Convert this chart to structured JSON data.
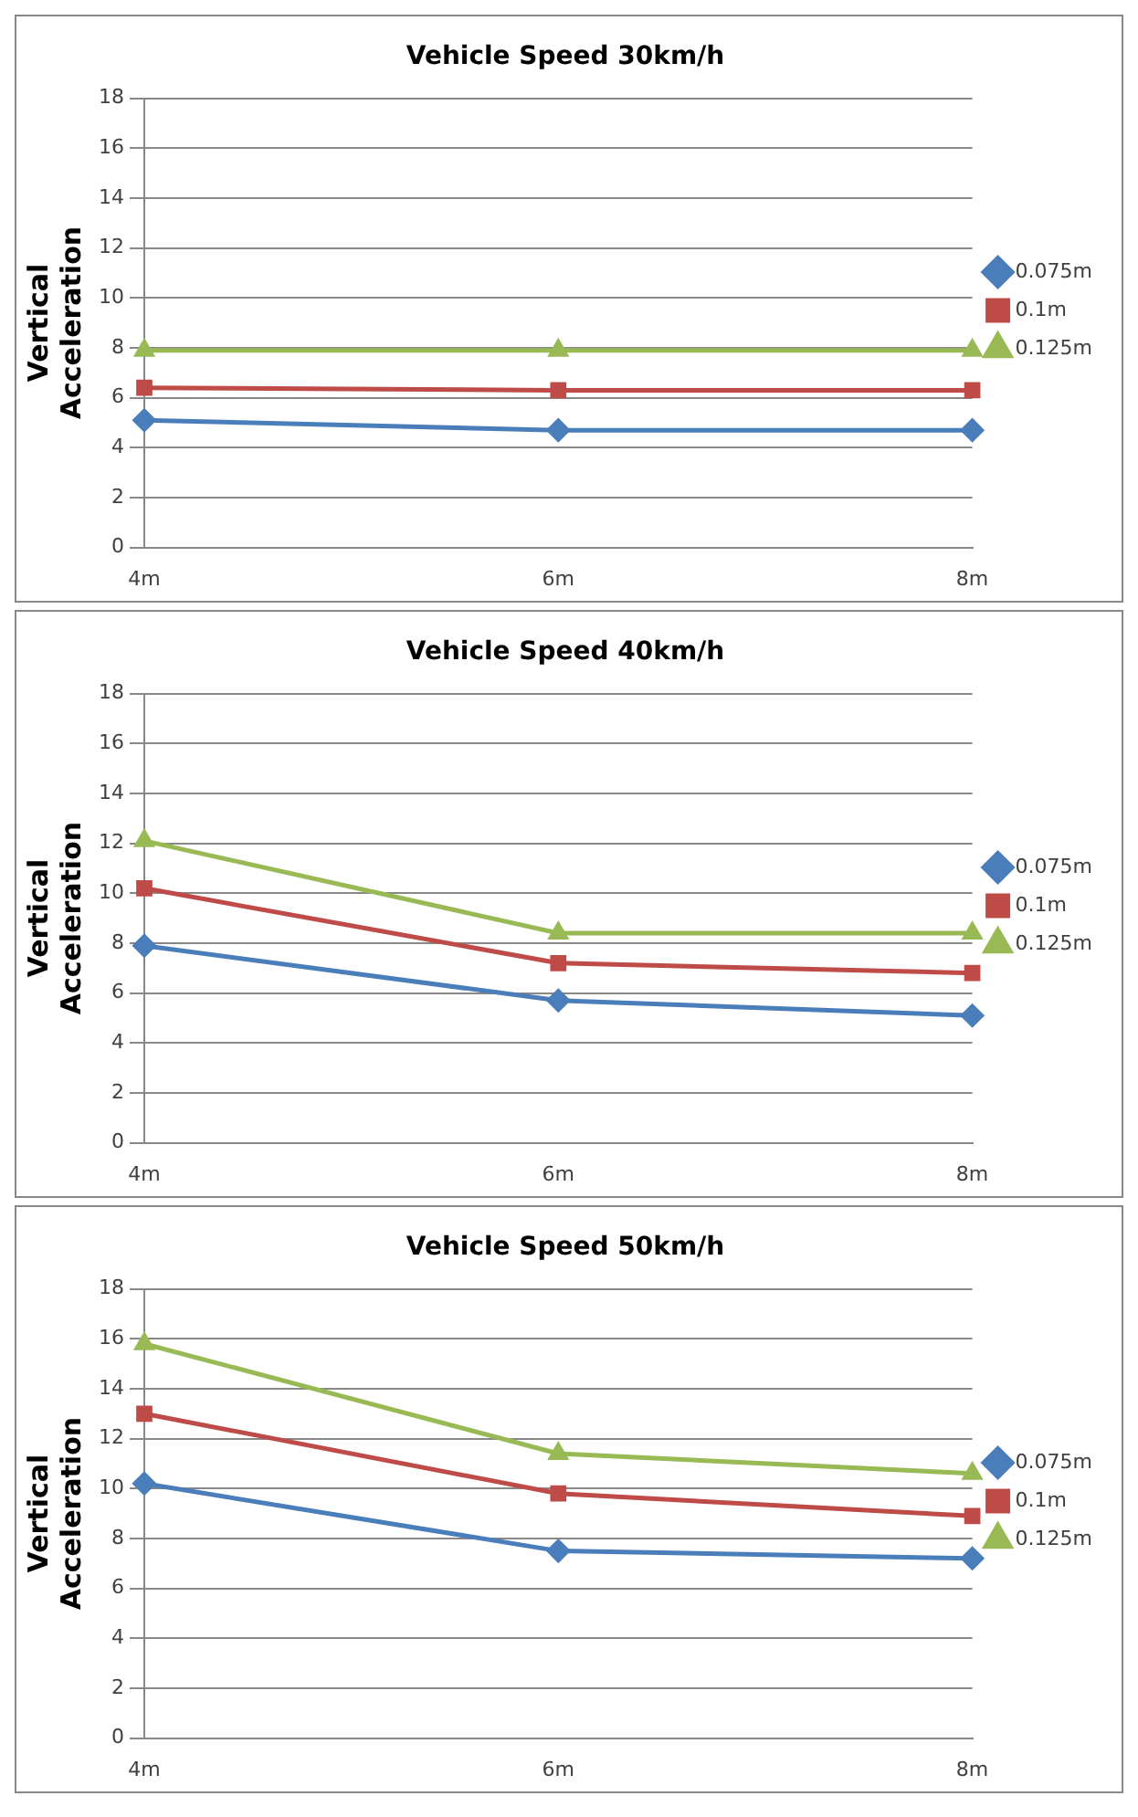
{
  "chart_data": [
    {
      "type": "line",
      "title": "Vehicle Speed 30km/h",
      "ylabel": "Vertical Acceleration",
      "categories": [
        "4m",
        "6m",
        "8m"
      ],
      "series": [
        {
          "name": "0.075m",
          "color": "#4a7ebb",
          "marker": "diamond",
          "values": [
            5.1,
            4.7,
            4.7
          ]
        },
        {
          "name": "0.1m",
          "color": "#be4b48",
          "marker": "square",
          "values": [
            6.4,
            6.3,
            6.3
          ]
        },
        {
          "name": "0.125m",
          "color": "#98b954",
          "marker": "triangle",
          "values": [
            7.9,
            7.9,
            7.9
          ]
        }
      ],
      "ylim": [
        0,
        18
      ],
      "yticks": [
        0,
        2,
        4,
        6,
        8,
        10,
        12,
        14,
        16,
        18
      ],
      "grid": "y",
      "legend": "right"
    },
    {
      "type": "line",
      "title": "Vehicle Speed 40km/h",
      "ylabel": "Vertical Acceleration",
      "categories": [
        "4m",
        "6m",
        "8m"
      ],
      "series": [
        {
          "name": "0.075m",
          "color": "#4a7ebb",
          "marker": "diamond",
          "values": [
            7.9,
            5.7,
            5.1
          ]
        },
        {
          "name": "0.1m",
          "color": "#be4b48",
          "marker": "square",
          "values": [
            10.2,
            7.2,
            6.8
          ]
        },
        {
          "name": "0.125m",
          "color": "#98b954",
          "marker": "triangle",
          "values": [
            12.1,
            8.4,
            8.4
          ]
        }
      ],
      "ylim": [
        0,
        18
      ],
      "yticks": [
        0,
        2,
        4,
        6,
        8,
        10,
        12,
        14,
        16,
        18
      ],
      "grid": "y",
      "legend": "right"
    },
    {
      "type": "line",
      "title": "Vehicle Speed 50km/h",
      "ylabel": "Vertical Acceleration",
      "categories": [
        "4m",
        "6m",
        "8m"
      ],
      "series": [
        {
          "name": "0.075m",
          "color": "#4a7ebb",
          "marker": "diamond",
          "values": [
            10.2,
            7.5,
            7.2
          ]
        },
        {
          "name": "0.1m",
          "color": "#be4b48",
          "marker": "square",
          "values": [
            13.0,
            9.8,
            8.9
          ]
        },
        {
          "name": "0.125m",
          "color": "#98b954",
          "marker": "triangle",
          "values": [
            15.8,
            11.4,
            10.6
          ]
        }
      ],
      "ylim": [
        0,
        18
      ],
      "yticks": [
        0,
        2,
        4,
        6,
        8,
        10,
        12,
        14,
        16,
        18
      ],
      "grid": "y",
      "legend": "right"
    }
  ]
}
